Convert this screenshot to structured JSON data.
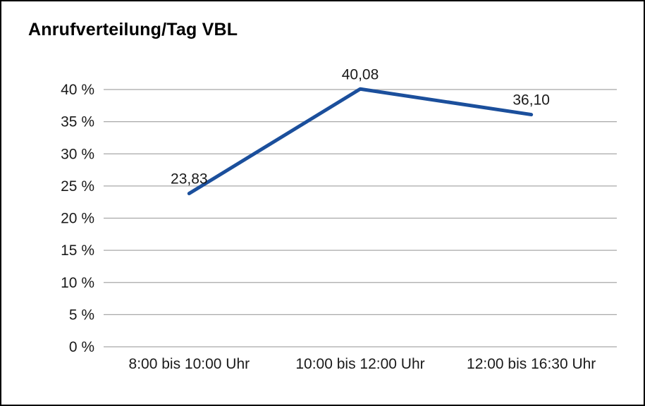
{
  "chart_data": {
    "type": "line",
    "title": "Anrufverteilung/Tag VBL",
    "categories": [
      "8:00 bis 10:00 Uhr",
      "10:00 bis 12:00 Uhr",
      "12:00 bis 16:30 Uhr"
    ],
    "series": [
      {
        "name": "Anrufverteilung/Tag VBL",
        "values": [
          23.83,
          40.08,
          36.1
        ],
        "point_labels": [
          "23,83",
          "40,08",
          "36,10"
        ],
        "color": "#1b4f9c"
      }
    ],
    "xlabel": "",
    "ylabel": "",
    "ylim": [
      0,
      40
    ],
    "ytick_step": 5,
    "ytick_suffix": " %",
    "grid": true,
    "legend": "none",
    "style": {
      "grid_color": "#a8a8a8",
      "text_color": "#1a1a1a",
      "background": "#ffffff",
      "border_color": "#000000"
    }
  }
}
